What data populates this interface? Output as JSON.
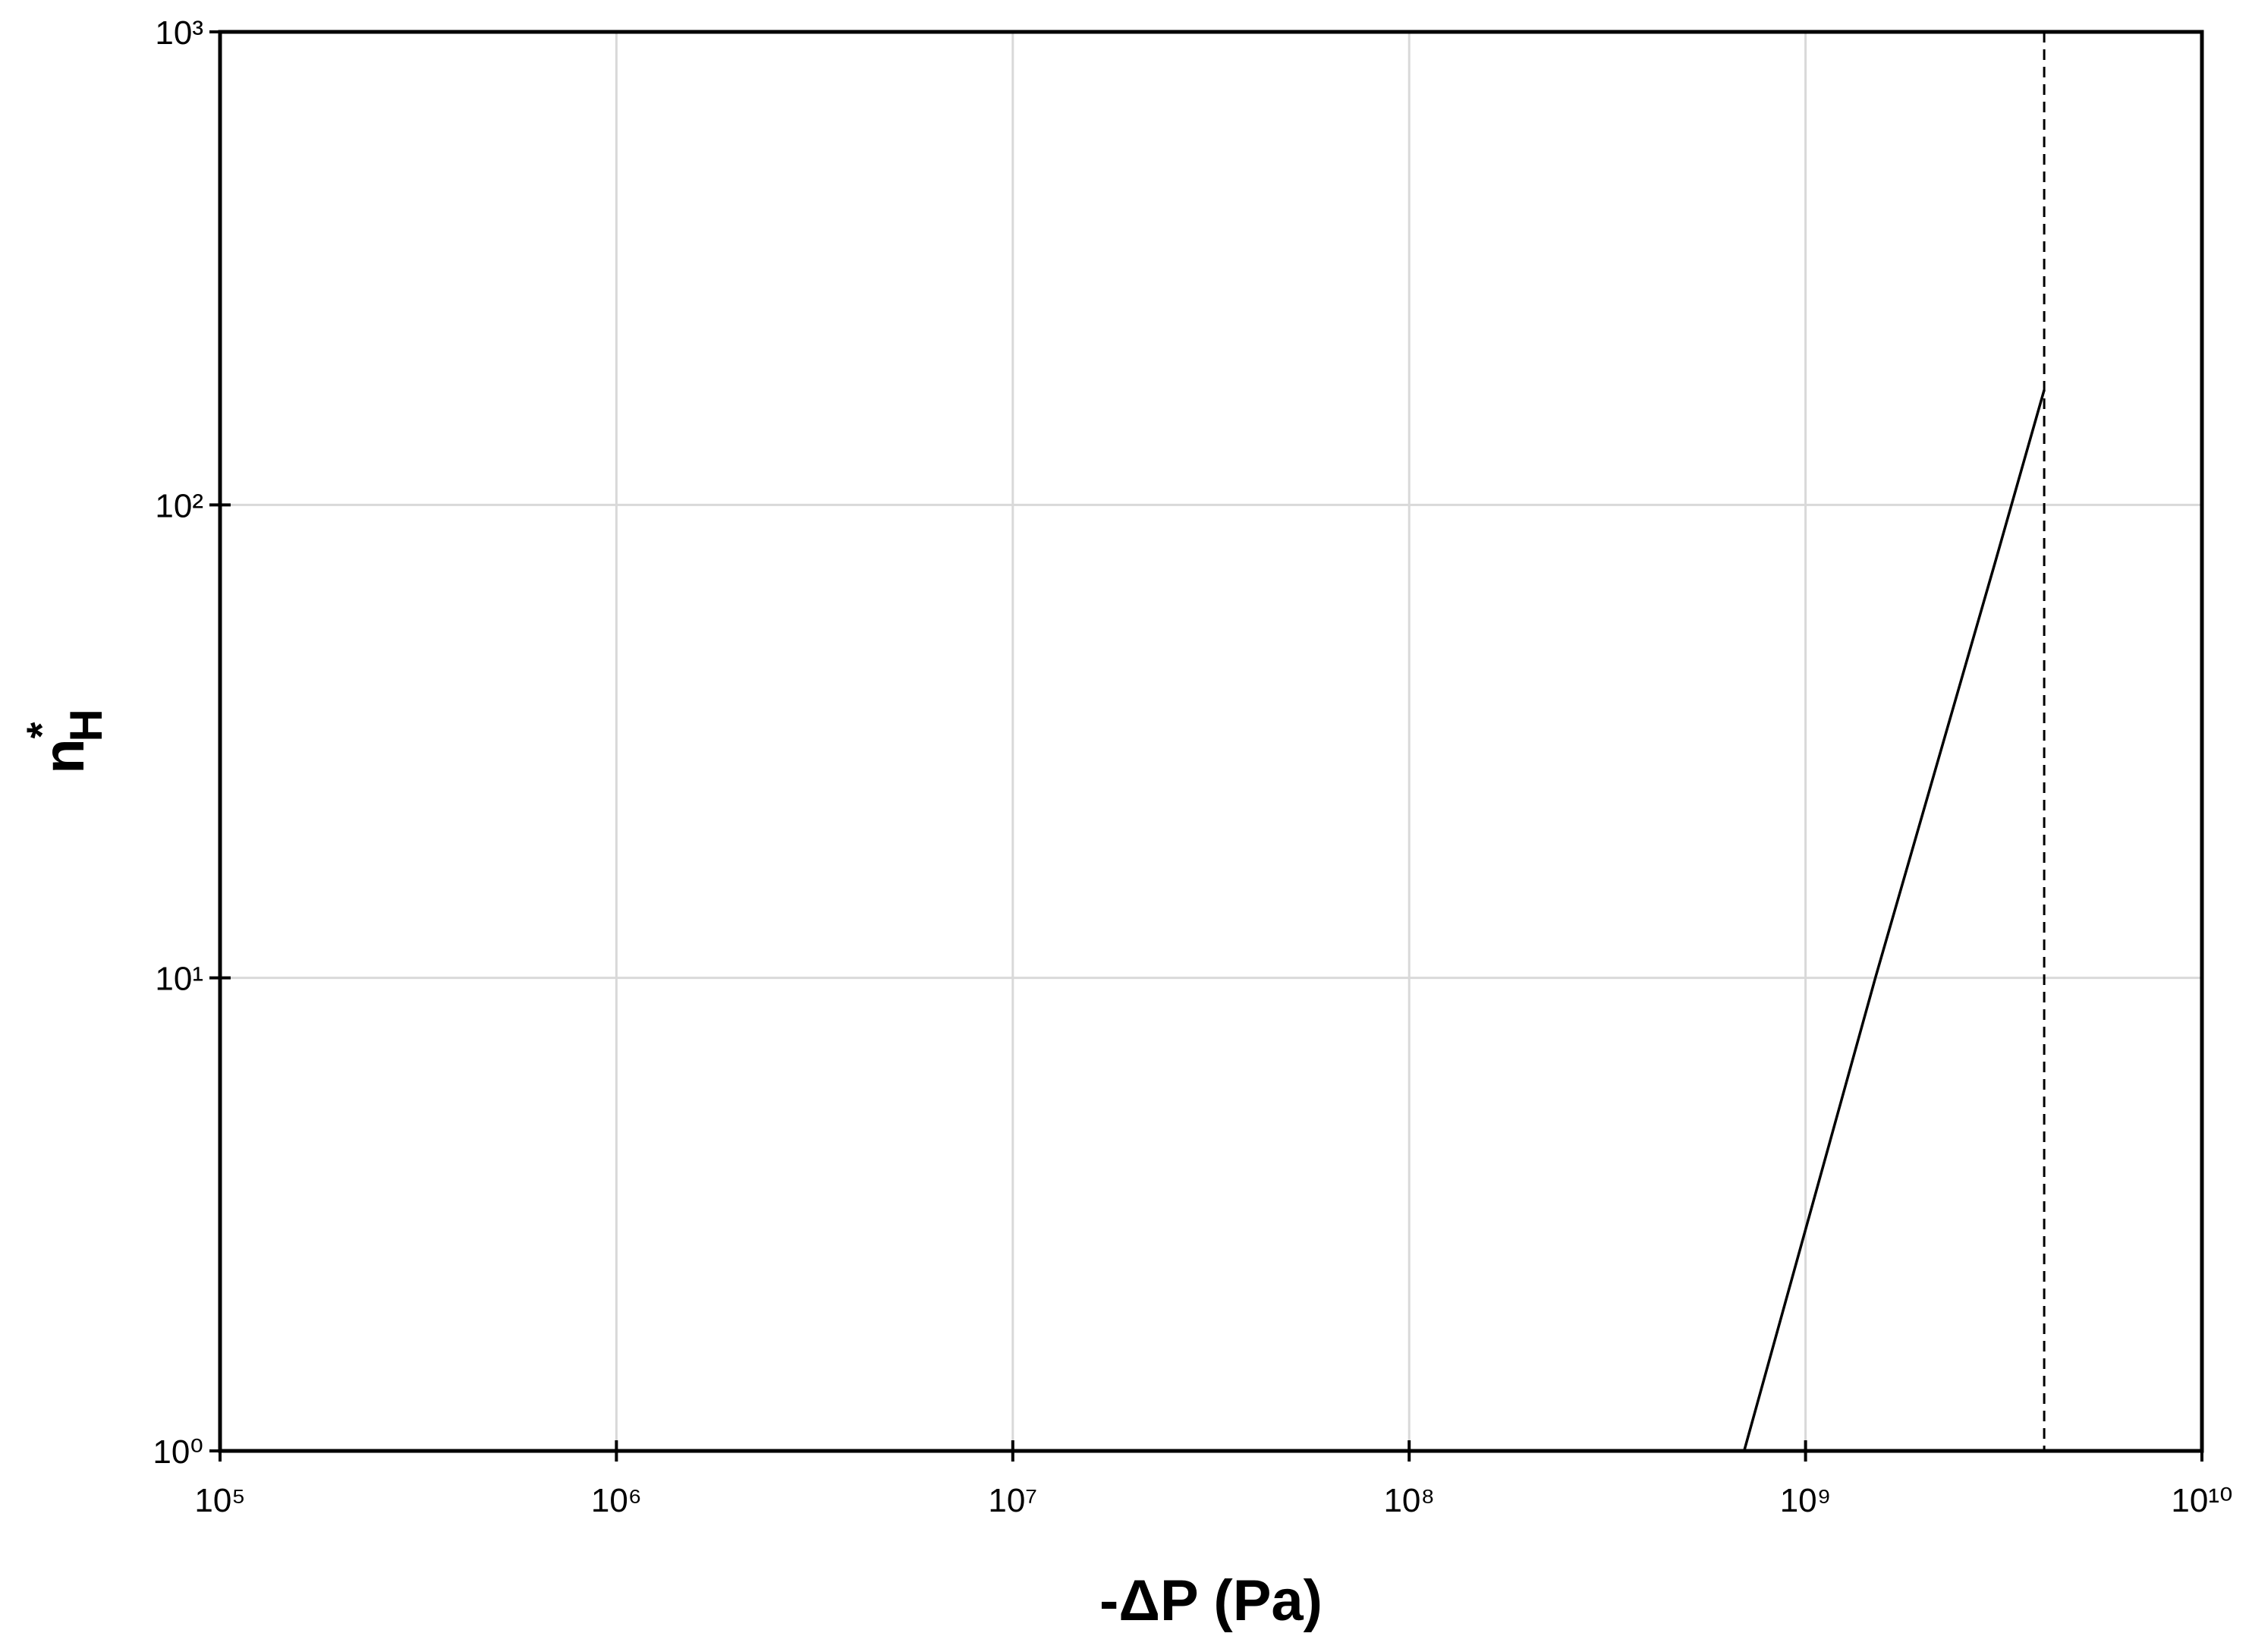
{
  "chart_data": {
    "type": "line",
    "xlabel": "-ΔP (Pa)",
    "ylabel": "n*H",
    "log_x": true,
    "log_y": true,
    "grid": true,
    "xlim": [
      100000,
      10000000000
    ],
    "ylim": [
      1,
      1000
    ],
    "xticks": [
      {
        "value": 100000,
        "label": "10⁵"
      },
      {
        "value": 1000000,
        "label": "10⁶"
      },
      {
        "value": 10000000,
        "label": "10⁷"
      },
      {
        "value": 100000000,
        "label": "10⁸"
      },
      {
        "value": 1000000000,
        "label": "10⁹"
      },
      {
        "value": 10000000000,
        "label": "10¹⁰"
      }
    ],
    "yticks": [
      {
        "value": 1,
        "label": "10⁰"
      },
      {
        "value": 10,
        "label": "10¹"
      },
      {
        "value": 100,
        "label": "10²"
      },
      {
        "value": 1000,
        "label": "10³"
      }
    ],
    "series": [
      {
        "color": "#000000",
        "x": [
          700000000,
          1500000000,
          3000000000,
          4000000000
        ],
        "values": [
          1,
          10,
          75,
          175
        ]
      }
    ],
    "reference_x": 4000000000,
    "reference_style": "dashed"
  }
}
